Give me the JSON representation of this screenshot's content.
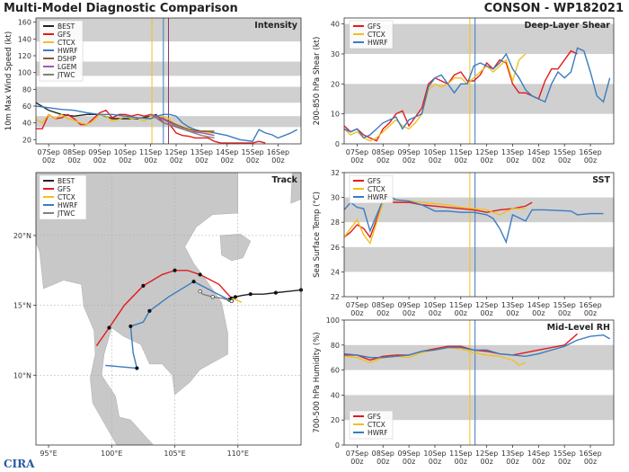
{
  "header": {
    "title": "Multi-Model Diagnostic Comparison",
    "storm": "CONSON - WP182021"
  },
  "logo": {
    "text": "CIRA"
  },
  "colors": {
    "BEST": "#222222",
    "GFS": "#e41a1c",
    "CTCX": "#f0c020",
    "HWRF": "#3a7cc0",
    "DSHP": "#8b5a2b",
    "LGEM": "#9b59b6",
    "JTWC": "#808080"
  },
  "x_dates": [
    "07Sep",
    "08Sep",
    "09Sep",
    "10Sep",
    "11Sep",
    "12Sep",
    "13Sep",
    "14Sep",
    "15Sep",
    "16Sep"
  ],
  "x_hour": "00z",
  "chart_data": [
    {
      "id": "intensity",
      "type": "line",
      "title": "Intensity",
      "ylabel": "10m Max Wind Speed (kt)",
      "ylim": [
        15,
        165
      ],
      "yticks": [
        20,
        40,
        60,
        80,
        100,
        120,
        140,
        160
      ],
      "bands": [
        [
          35,
          48
        ],
        [
          64,
          83
        ],
        [
          96,
          113
        ],
        [
          137,
          165
        ]
      ],
      "vlines": [
        {
          "x": 4.05,
          "color": "#f0c020"
        },
        {
          "x": 4.5,
          "color": "#3a7cc0"
        },
        {
          "x": 4.7,
          "color": "#8b3a62"
        }
      ],
      "legend": [
        "BEST",
        "GFS",
        "CTCX",
        "HWRF",
        "DSHP",
        "LGEM",
        "JTWC"
      ],
      "series": [
        {
          "name": "BEST",
          "color": "#222222",
          "x": [
            -0.5,
            0,
            0.5,
            1,
            1.5,
            2,
            2.5,
            3,
            3.5,
            4,
            4.25
          ],
          "y": [
            64,
            55,
            50,
            48,
            50,
            50,
            45,
            45,
            45,
            48,
            50
          ]
        },
        {
          "name": "GFS",
          "color": "#e41a1c",
          "x": [
            -0.5,
            -0.25,
            0,
            0.25,
            0.5,
            0.75,
            1,
            1.25,
            1.5,
            1.75,
            2,
            2.25,
            2.5,
            2.75,
            3,
            3.25,
            3.5,
            3.75,
            4,
            4.25,
            4.5,
            4.75,
            5,
            5.25,
            5.5,
            5.75,
            6,
            6.25,
            6.5,
            6.75,
            8,
            8.25,
            8.5
          ],
          "y": [
            33,
            33,
            50,
            45,
            46,
            50,
            45,
            38,
            38,
            45,
            52,
            55,
            46,
            50,
            50,
            48,
            50,
            48,
            50,
            48,
            40,
            38,
            28,
            25,
            24,
            22,
            22,
            22,
            18,
            16,
            16,
            18,
            16
          ]
        },
        {
          "name": "CTCX",
          "color": "#f0c020",
          "x": [
            -0.5,
            -0.25,
            0,
            0.25,
            0.5,
            0.75,
            1,
            1.25,
            1.5,
            1.75,
            2,
            2.25,
            2.5,
            2.75,
            3,
            3.25,
            3.5,
            3.75,
            4,
            4.25,
            4.5,
            4.75,
            5,
            5.25,
            5.5,
            5.75,
            6,
            6.25,
            6.5
          ],
          "y": [
            44,
            40,
            50,
            45,
            50,
            45,
            43,
            40,
            38,
            42,
            50,
            48,
            42,
            44,
            48,
            45,
            46,
            42,
            48,
            46,
            48,
            44,
            36,
            34,
            34,
            30,
            30,
            28,
            28
          ]
        },
        {
          "name": "HWRF",
          "color": "#3a7cc0",
          "x": [
            -0.5,
            0,
            0.5,
            1,
            1.5,
            2,
            2.5,
            3,
            3.5,
            4,
            4.25,
            4.5,
            4.75,
            5,
            5.25,
            5.5,
            5.75,
            6,
            6.25,
            6.5,
            7,
            7.5,
            8,
            8.25,
            8.5,
            8.75,
            9,
            9.25,
            9.5,
            9.75
          ],
          "y": [
            60,
            58,
            56,
            55,
            52,
            50,
            50,
            48,
            46,
            45,
            48,
            50,
            50,
            48,
            40,
            35,
            32,
            30,
            30,
            28,
            25,
            20,
            18,
            32,
            28,
            26,
            22,
            25,
            28,
            32
          ]
        },
        {
          "name": "DSHP",
          "color": "#8b5a2b",
          "x": [
            4,
            4.5,
            5,
            5.5,
            6,
            6.5
          ],
          "y": [
            50,
            45,
            38,
            32,
            30,
            30
          ]
        },
        {
          "name": "LGEM",
          "color": "#9b59b6",
          "x": [
            4,
            4.5,
            5,
            5.5,
            6,
            6.5
          ],
          "y": [
            50,
            44,
            36,
            30,
            28,
            25
          ]
        },
        {
          "name": "JTWC",
          "color": "#808080",
          "x": [
            4,
            4.5,
            5,
            5.5,
            6,
            6.5
          ],
          "y": [
            50,
            40,
            35,
            30,
            25,
            22
          ]
        }
      ]
    },
    {
      "id": "shear",
      "type": "line",
      "title": "Deep-Layer Shear",
      "ylabel": "200-850 hPa Shear (kt)",
      "ylim": [
        0,
        42
      ],
      "yticks": [
        0,
        10,
        20,
        30,
        40
      ],
      "bands": [
        [
          10,
          20
        ],
        [
          30,
          40
        ]
      ],
      "vlines": [
        {
          "x": 4.35,
          "color": "#f0c020"
        },
        {
          "x": 4.55,
          "color": "#3a7cc0"
        }
      ],
      "legend": [
        "GFS",
        "CTCX",
        "HWRF"
      ],
      "series": [
        {
          "name": "GFS",
          "color": "#e41a1c",
          "x": [
            -0.5,
            -0.25,
            0,
            0.25,
            0.5,
            0.75,
            1,
            1.25,
            1.5,
            1.75,
            2,
            2.25,
            2.5,
            2.75,
            3,
            3.25,
            3.5,
            3.75,
            4,
            4.25,
            4.5,
            4.75,
            5,
            5.25,
            5.5,
            5.75,
            6,
            6.25,
            6.5,
            6.75,
            7,
            7.25,
            7.5,
            7.75,
            8,
            8.25,
            8.5
          ],
          "y": [
            6,
            4,
            5,
            3,
            2,
            1,
            5,
            7,
            10,
            11,
            6,
            9,
            12,
            20,
            22,
            21,
            20,
            23,
            24,
            21,
            21,
            23,
            27,
            25,
            28,
            27,
            20,
            17,
            17,
            16,
            15,
            21,
            25,
            25,
            28,
            31,
            30
          ]
        },
        {
          "name": "CTCX",
          "color": "#f0c020",
          "x": [
            -0.5,
            -0.25,
            0,
            0.25,
            0.5,
            0.75,
            1,
            1.25,
            1.5,
            1.75,
            2,
            2.25,
            2.5,
            2.75,
            3,
            3.25,
            3.5,
            3.75,
            4,
            4.25,
            4.5,
            4.75,
            5,
            5.25,
            5.5,
            5.75,
            6,
            6.25,
            6.5
          ],
          "y": [
            5,
            3,
            4,
            2,
            1,
            2,
            4,
            6,
            8,
            6,
            5,
            7,
            10,
            18,
            20,
            19,
            20,
            22,
            22,
            20,
            22,
            24,
            26,
            24,
            26,
            28,
            21,
            28,
            30
          ]
        },
        {
          "name": "HWRF",
          "color": "#3a7cc0",
          "x": [
            -0.5,
            -0.25,
            0,
            0.25,
            0.5,
            0.75,
            1,
            1.25,
            1.5,
            1.75,
            2,
            2.25,
            2.5,
            2.75,
            3,
            3.25,
            3.5,
            3.75,
            4,
            4.25,
            4.5,
            4.75,
            5,
            5.25,
            5.5,
            5.75,
            6,
            6.25,
            6.5,
            6.75,
            7,
            7.25,
            7.5,
            7.75,
            8,
            8.25,
            8.5,
            8.75,
            9,
            9.25,
            9.5,
            9.75
          ],
          "y": [
            5,
            4,
            5,
            2,
            3,
            5,
            7,
            8,
            9,
            5,
            8,
            9,
            10,
            19,
            22,
            23,
            20,
            17,
            20,
            20,
            26,
            27,
            26,
            25,
            27,
            30,
            25,
            22,
            18,
            16,
            15,
            14,
            20,
            24,
            22,
            24,
            32,
            31,
            24,
            16,
            14,
            22
          ]
        }
      ]
    },
    {
      "id": "sst",
      "type": "line",
      "title": "SST",
      "ylabel": "Sea Surface Temp (°C)",
      "ylim": [
        22,
        32
      ],
      "yticks": [
        22,
        24,
        26,
        28,
        30,
        32
      ],
      "bands": [
        [
          24,
          26
        ],
        [
          28,
          30
        ]
      ],
      "vlines": [
        {
          "x": 4.35,
          "color": "#f0c020"
        },
        {
          "x": 4.55,
          "color": "#3a7cc0"
        }
      ],
      "legend": [
        "GFS",
        "CTCX",
        "HWRF"
      ],
      "series": [
        {
          "name": "GFS",
          "color": "#e41a1c",
          "x": [
            -0.5,
            -0.25,
            0,
            0.25,
            0.5,
            1,
            1.5,
            2,
            2.5,
            3,
            3.5,
            4,
            4.5,
            5,
            5.5,
            6,
            6.5,
            6.75
          ],
          "y": [
            26.8,
            27.2,
            27.8,
            27.5,
            26.8,
            29.6,
            29.6,
            29.6,
            29.4,
            29.3,
            29.2,
            29.1,
            29.0,
            28.8,
            29.0,
            29.1,
            29.3,
            29.6
          ]
        },
        {
          "name": "CTCX",
          "color": "#f0c020",
          "x": [
            -0.5,
            -0.25,
            0,
            0.25,
            0.5,
            1,
            1.5,
            2,
            2.5,
            3,
            3.5,
            4,
            4.5,
            5,
            5.5,
            6,
            6.5
          ],
          "y": [
            26.8,
            27.5,
            28.2,
            27.0,
            26.3,
            29.6,
            29.8,
            29.7,
            29.6,
            29.5,
            29.4,
            29.2,
            29.1,
            29.0,
            28.6,
            29.1,
            29.1
          ]
        },
        {
          "name": "HWRF",
          "color": "#3a7cc0",
          "x": [
            -0.5,
            -0.25,
            0,
            0.25,
            0.5,
            1,
            1.25,
            1.5,
            2,
            2.5,
            3,
            3.5,
            4,
            4.5,
            5,
            5.25,
            5.5,
            5.75,
            6,
            6.5,
            6.75,
            7,
            7.25,
            8.25,
            8.5,
            9,
            9.5
          ],
          "y": [
            29.0,
            29.6,
            29.2,
            29.1,
            27.3,
            29.8,
            30.1,
            29.8,
            29.7,
            29.4,
            28.9,
            28.9,
            28.8,
            28.8,
            28.6,
            28.3,
            27.5,
            26.4,
            28.6,
            28.1,
            29.0,
            29.0,
            29.0,
            28.9,
            28.6,
            28.7,
            28.7
          ]
        }
      ]
    },
    {
      "id": "rh",
      "type": "line",
      "title": "Mid-Level RH",
      "ylabel": "700-500 hPa Humidity (%)",
      "ylim": [
        0,
        100
      ],
      "yticks": [
        0,
        20,
        40,
        60,
        80,
        100
      ],
      "bands": [
        [
          20,
          40
        ],
        [
          60,
          80
        ]
      ],
      "vlines": [
        {
          "x": 4.35,
          "color": "#f0c020"
        },
        {
          "x": 4.55,
          "color": "#3a7cc0"
        }
      ],
      "legend": [
        "GFS",
        "CTCX",
        "HWRF"
      ],
      "series": [
        {
          "name": "GFS",
          "color": "#e41a1c",
          "x": [
            -0.5,
            0,
            0.5,
            1,
            1.5,
            2,
            2.5,
            3,
            3.5,
            4,
            4.5,
            5,
            5.5,
            6,
            6.5,
            7,
            7.5,
            8,
            8.5
          ],
          "y": [
            72,
            72,
            68,
            71,
            72,
            72,
            75,
            77,
            79,
            79,
            76,
            75,
            73,
            72,
            74,
            76,
            78,
            80,
            89
          ]
        },
        {
          "name": "CTCX",
          "color": "#f0c020",
          "x": [
            -0.5,
            0,
            0.5,
            1,
            1.5,
            2,
            2.5,
            3,
            3.5,
            4,
            4.5,
            5,
            5.5,
            6,
            6.25,
            6.5
          ],
          "y": [
            71,
            70,
            66,
            70,
            71,
            70,
            74,
            76,
            78,
            77,
            74,
            72,
            71,
            68,
            64,
            66
          ]
        },
        {
          "name": "HWRF",
          "color": "#3a7cc0",
          "x": [
            -0.5,
            0,
            0.5,
            1,
            1.5,
            2,
            2.5,
            3,
            3.5,
            4,
            4.5,
            5,
            5.5,
            6,
            6.5,
            7,
            7.5,
            8,
            8.5,
            9,
            9.5,
            9.75
          ],
          "y": [
            73,
            72,
            70,
            70,
            71,
            72,
            75,
            76,
            78,
            78,
            76,
            76,
            73,
            72,
            71,
            73,
            76,
            79,
            84,
            87,
            88,
            85
          ]
        }
      ]
    },
    {
      "id": "track",
      "type": "line",
      "title": "Track",
      "xlabel_ticks": [
        "95°E",
        "100°E",
        "105°E",
        "110°E"
      ],
      "ylabel_ticks": [
        "10°N",
        "15°N",
        "20°N"
      ],
      "xlim": [
        94,
        115
      ],
      "ylim": [
        5,
        24.5
      ],
      "legend": [
        "BEST",
        "GFS",
        "CTCX",
        "HWRF",
        "JTWC"
      ],
      "series": [
        {
          "name": "BEST",
          "color": "#222222",
          "lon": [
            115,
            114,
            113,
            112,
            111,
            110.3,
            109.8,
            109.5,
            109.3
          ],
          "lat": [
            16.1,
            16.0,
            15.9,
            15.8,
            15.8,
            15.7,
            15.6,
            15.5,
            15.4
          ]
        },
        {
          "name": "GFS",
          "color": "#e41a1c",
          "lon": [
            109.5,
            108.5,
            107.0,
            106.0,
            105.0,
            104.0,
            102.5,
            101.0,
            99.8,
            98.8
          ],
          "lat": [
            15.5,
            16.5,
            17.2,
            17.5,
            17.5,
            17.2,
            16.4,
            15.0,
            13.4,
            12.1
          ]
        },
        {
          "name": "CTCX",
          "color": "#f0c020",
          "lon": [
            109.5,
            109.8,
            110.1,
            110.3
          ],
          "lat": [
            15.5,
            15.4,
            15.3,
            15.2
          ]
        },
        {
          "name": "HWRF",
          "color": "#3a7cc0",
          "lon": [
            109.5,
            108.0,
            106.5,
            104.5,
            103.0,
            102.5,
            101.5,
            101.7,
            102.0,
            99.5
          ],
          "lat": [
            15.3,
            16.0,
            16.7,
            15.6,
            14.6,
            13.8,
            13.5,
            11.6,
            10.5,
            10.7
          ]
        },
        {
          "name": "JTWC",
          "color": "#808080",
          "lon": [
            109.5,
            108.8,
            108.0,
            107.2,
            107.0
          ],
          "lat": [
            15.3,
            15.5,
            15.6,
            15.8,
            16.0
          ]
        }
      ]
    }
  ]
}
